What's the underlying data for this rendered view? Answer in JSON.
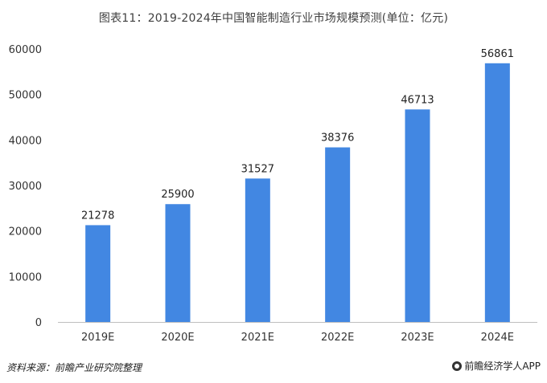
{
  "header": {
    "title": "图表11：2019-2024年中国智能制造行业市场规模预测(单位：亿元)"
  },
  "footer": {
    "source": "资料来源：前瞻产业研究院整理",
    "brand": "前瞻经济学人APP",
    "brand_icon": "brand-logo-icon"
  },
  "chart_data": {
    "type": "bar",
    "categories": [
      "2019E",
      "2020E",
      "2021E",
      "2022E",
      "2023E",
      "2024E"
    ],
    "values": [
      21278,
      25900,
      31527,
      38376,
      46713,
      56861
    ],
    "y_ticks": [
      "0",
      "10000",
      "20000",
      "30000",
      "40000",
      "50000",
      "60000"
    ],
    "ylim": [
      0,
      60000
    ],
    "bar_color": "#4287e2",
    "grid": false,
    "legend": "none"
  }
}
